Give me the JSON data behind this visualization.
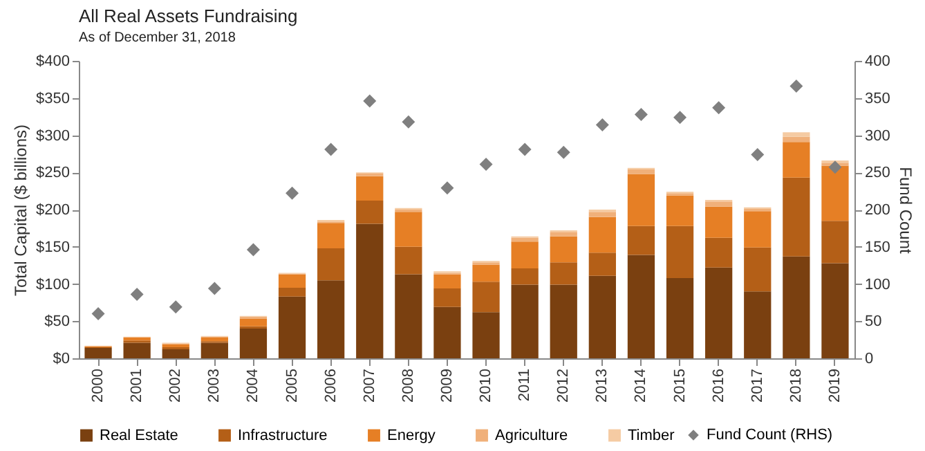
{
  "chart_data": {
    "type": "bar",
    "title": "All Real Assets Fundraising",
    "subtitle": "As of December 31, 2018",
    "ylabel": "Total Capital ($ billions)",
    "y2label": "Fund Count",
    "stacked": true,
    "legend": "bottom",
    "grid": false,
    "categories": [
      "2000",
      "2001",
      "2002",
      "2003",
      "2004",
      "2005",
      "2006",
      "2007",
      "2008",
      "2009",
      "2010",
      "2011",
      "2012",
      "2013",
      "2014",
      "2015",
      "2016",
      "2017",
      "2018",
      "2019"
    ],
    "ylim": [
      0,
      400
    ],
    "yticks": [
      {
        "value": 0,
        "label": "$0"
      },
      {
        "value": 50,
        "label": "$50"
      },
      {
        "value": 100,
        "label": "$100"
      },
      {
        "value": 150,
        "label": "$150"
      },
      {
        "value": 200,
        "label": "$200"
      },
      {
        "value": 250,
        "label": "$250"
      },
      {
        "value": 300,
        "label": "$300"
      },
      {
        "value": 350,
        "label": "$350"
      },
      {
        "value": 400,
        "label": "$400"
      }
    ],
    "y2lim": [
      0,
      400
    ],
    "y2ticks": [
      0,
      50,
      100,
      150,
      200,
      250,
      300,
      350,
      400
    ],
    "series": [
      {
        "name": "Real Estate",
        "color": "#7a4010",
        "values": [
          14,
          21,
          12,
          21,
          40,
          83,
          105,
          181,
          113,
          69,
          62,
          99,
          99,
          111,
          139,
          108,
          122,
          90,
          137,
          128
        ]
      },
      {
        "name": "Infrastructure",
        "color": "#b45f17",
        "values": [
          1,
          3,
          3,
          2,
          3,
          12,
          43,
          31,
          37,
          25,
          41,
          22,
          30,
          31,
          39,
          70,
          40,
          59,
          106,
          57
        ]
      },
      {
        "name": "Energy",
        "color": "#e67f25",
        "values": [
          1,
          4,
          4,
          5,
          10,
          18,
          34,
          33,
          47,
          19,
          23,
          36,
          35,
          48,
          70,
          41,
          42,
          49,
          48,
          74
        ]
      },
      {
        "name": "Agriculture",
        "color": "#f0b07a",
        "values": [
          0.5,
          0.5,
          1,
          1,
          3,
          1,
          2,
          4,
          3,
          2,
          3,
          5,
          6,
          7,
          6,
          3,
          7,
          3,
          7,
          4
        ]
      },
      {
        "name": "Timber",
        "color": "#f5cba3",
        "values": [
          0.5,
          0.5,
          1,
          1,
          1,
          1,
          2,
          1,
          2,
          2,
          2,
          2,
          2,
          3,
          2,
          2,
          2,
          2,
          6,
          3
        ]
      },
      {
        "name": "Fund Count (RHS)",
        "type": "scatter",
        "axis": "y2",
        "marker": "diamond",
        "color": "#7f7f7f",
        "values": [
          60,
          86,
          69,
          94,
          146,
          222,
          281,
          346,
          318,
          229,
          261,
          281,
          277,
          314,
          328,
          324,
          337,
          274,
          366,
          257
        ]
      }
    ]
  }
}
